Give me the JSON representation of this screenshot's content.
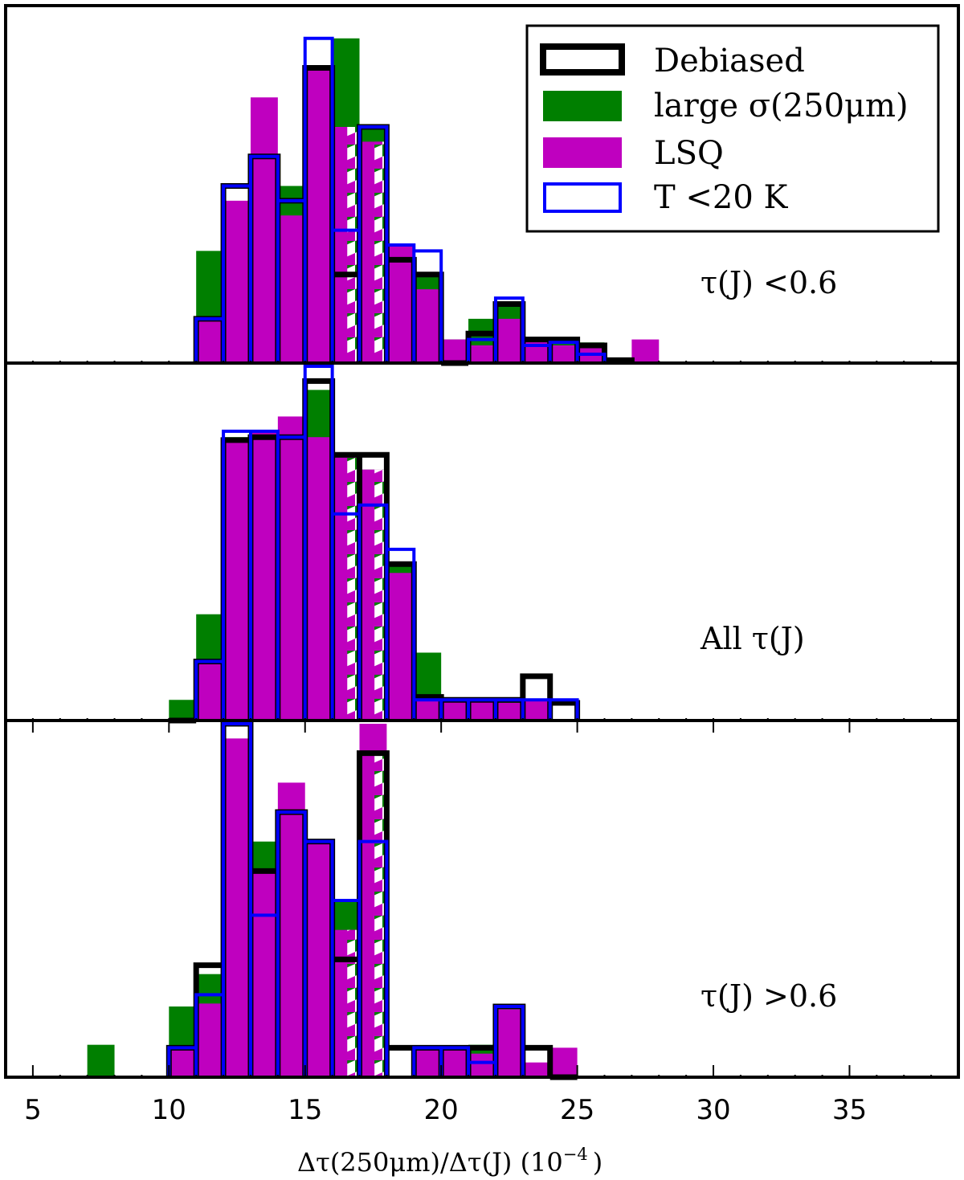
{
  "chart_data": [
    {
      "type": "bar",
      "histogram": true,
      "panel": "top",
      "label": "τ(J) <0.6",
      "bin_width": 1,
      "ylim": [
        0,
        12
      ],
      "series": [
        {
          "name": "Debiased",
          "color": "#000000",
          "style": "step-outline",
          "bin_starts": [
            11,
            12,
            13,
            14,
            15,
            16,
            17,
            18,
            19,
            20,
            21,
            22,
            23,
            24,
            25,
            26
          ],
          "counts": [
            1.5,
            6,
            7,
            5.5,
            10,
            3,
            8,
            3.5,
            3,
            0,
            1,
            2,
            0.8,
            0.8,
            0.6,
            0.1
          ]
        },
        {
          "name": "large σ(250μm)",
          "color": "#007f00",
          "style": "filled",
          "bin_starts": [
            11,
            12,
            13,
            14,
            15,
            16,
            17,
            18,
            19,
            20,
            21,
            22,
            23,
            24,
            25
          ],
          "counts": [
            3.8,
            5.3,
            6.5,
            6.0,
            10,
            11,
            8,
            4,
            3,
            0.8,
            1.5,
            2,
            0.5,
            0.8,
            0.7
          ]
        },
        {
          "name": "LSQ",
          "color": "#bf00bf",
          "style": "filled",
          "bin_starts": [
            11,
            12,
            13,
            14,
            15,
            16,
            17,
            18,
            19,
            20,
            21,
            22,
            23,
            24,
            25,
            27
          ],
          "counts": [
            1.5,
            5.5,
            9,
            5,
            10,
            8,
            7.5,
            4,
            2.5,
            0.8,
            0.6,
            1.5,
            0.8,
            0.6,
            0.6,
            0.8
          ]
        },
        {
          "name": "T <20 K",
          "color": "#0000ff",
          "style": "step-outline",
          "bin_starts": [
            11,
            12,
            13,
            14,
            15,
            16,
            17,
            18,
            19,
            20,
            21,
            22,
            23,
            24,
            25
          ],
          "counts": [
            1.5,
            6,
            7,
            5.5,
            11,
            4.5,
            8,
            4,
            3.8,
            0,
            0.8,
            2.2,
            0.6,
            0.7,
            0.3
          ]
        }
      ]
    },
    {
      "type": "bar",
      "histogram": true,
      "panel": "middle",
      "label": "All τ(J)",
      "bin_width": 1,
      "ylim": [
        0,
        12
      ],
      "series": [
        {
          "name": "Debiased",
          "color": "#000000",
          "style": "step-outline",
          "bin_starts": [
            10,
            11,
            12,
            13,
            14,
            15,
            16,
            17,
            18,
            19,
            20,
            21,
            22,
            23,
            24
          ],
          "counts": [
            0,
            2,
            9.5,
            9.6,
            9.6,
            11.5,
            9,
            9,
            5.3,
            0.8,
            0.7,
            0.7,
            0.7,
            1.5,
            0.6
          ]
        },
        {
          "name": "large σ(250μm)",
          "color": "#007f00",
          "style": "filled",
          "bin_starts": [
            10,
            11,
            12,
            13,
            14,
            15,
            16,
            17,
            18,
            19,
            20,
            21,
            22,
            23
          ],
          "counts": [
            0.7,
            3.6,
            9.6,
            9.6,
            9.6,
            11.2,
            9,
            8.5,
            5.3,
            2.3,
            0.7,
            0.7,
            0.7,
            0.6
          ]
        },
        {
          "name": "LSQ",
          "color": "#bf00bf",
          "style": "filled",
          "bin_starts": [
            11,
            12,
            13,
            14,
            15,
            16,
            17,
            18,
            19,
            20,
            21,
            22,
            23
          ],
          "counts": [
            2,
            9.5,
            9.8,
            10.3,
            9.6,
            9,
            8.5,
            5,
            0.7,
            0.7,
            0.7,
            0.6,
            0.7
          ]
        },
        {
          "name": "T <20 K",
          "color": "#0000ff",
          "style": "step-outline",
          "bin_starts": [
            11,
            12,
            13,
            14,
            15,
            16,
            17,
            18,
            19,
            20,
            21,
            22,
            23,
            24
          ],
          "counts": [
            2,
            9.8,
            9.8,
            9.6,
            12,
            7,
            7.3,
            5.8,
            0.7,
            0.7,
            0.7,
            0.7,
            0.7,
            0.7
          ]
        }
      ]
    },
    {
      "type": "bar",
      "histogram": true,
      "panel": "bottom",
      "label": "τ(J) >0.6",
      "bin_width": 1,
      "ylim": [
        0,
        12
      ],
      "series": [
        {
          "name": "Debiased",
          "color": "#000000",
          "style": "step-outline",
          "bin_starts": [
            10,
            11,
            12,
            13,
            14,
            15,
            16,
            17,
            18,
            19,
            20,
            21,
            22,
            23,
            24
          ],
          "counts": [
            1,
            3.8,
            12,
            7,
            9,
            8,
            4,
            11,
            1,
            1,
            1,
            1,
            2.4,
            1,
            0
          ]
        },
        {
          "name": "large σ(250μm)",
          "color": "#007f00",
          "style": "filled",
          "bin_starts": [
            7,
            10,
            11,
            12,
            13,
            14,
            15,
            16,
            17,
            19,
            20,
            21,
            22
          ],
          "counts": [
            1.1,
            2.4,
            3.5,
            11,
            8,
            7,
            8,
            6,
            11,
            0.9,
            0.9,
            1.1,
            0.6
          ]
        },
        {
          "name": "LSQ",
          "color": "#bf00bf",
          "style": "filled",
          "bin_starts": [
            10,
            11,
            12,
            13,
            14,
            15,
            16,
            17,
            19,
            20,
            21,
            22,
            23,
            24
          ],
          "counts": [
            1,
            2.5,
            11.5,
            7,
            10,
            8,
            5,
            12,
            1,
            1,
            0.8,
            2.3,
            0.5,
            1
          ]
        },
        {
          "name": "T <20 K",
          "color": "#0000ff",
          "style": "step-outline",
          "bin_starts": [
            10,
            11,
            12,
            13,
            14,
            15,
            16,
            17,
            18,
            19,
            20,
            21,
            22,
            23
          ],
          "counts": [
            1,
            2.8,
            12,
            5.5,
            9,
            8,
            6,
            8,
            0,
            1,
            1,
            0.5,
            2.4,
            0
          ]
        }
      ]
    }
  ],
  "legend": {
    "placement": "top-right",
    "entries": [
      "Debiased",
      "large σ(250μm)",
      "LSQ",
      "T <20 K"
    ]
  },
  "xaxis": {
    "label": "Δτ(250μm)/Δτ(J)  (10",
    "label_exponent": "−4",
    "label_close": ")",
    "xlim": [
      4,
      39
    ],
    "ticks": [
      5,
      10,
      15,
      20,
      25,
      30,
      35
    ],
    "tick_labels": [
      "5",
      "10",
      "15",
      "20",
      "25",
      "30",
      "35"
    ]
  },
  "colors": {
    "debiased": "#000000",
    "large_sigma": "#007f00",
    "lsq": "#bf00bf",
    "cold": "#0000ff"
  }
}
